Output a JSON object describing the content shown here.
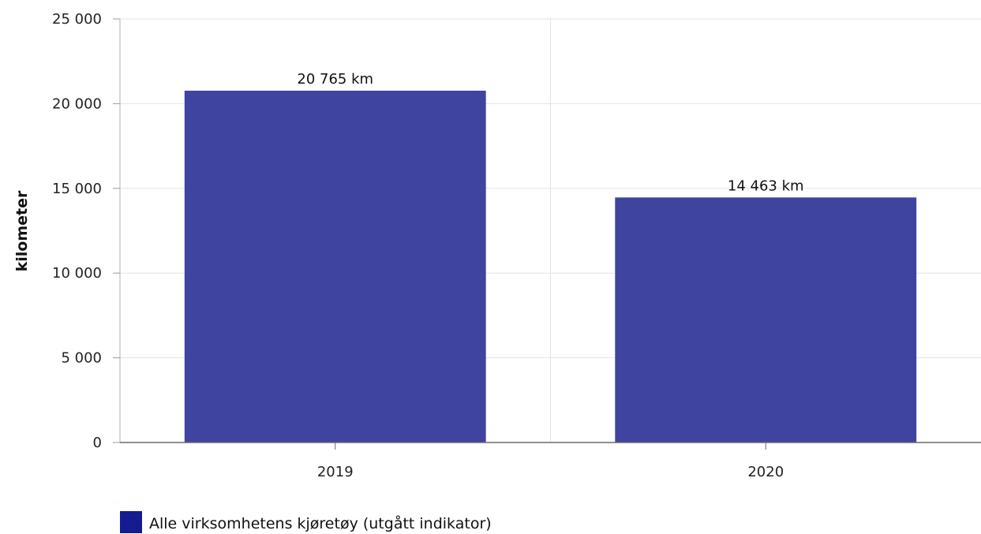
{
  "chart_data": {
    "type": "bar",
    "title": "",
    "xlabel": "",
    "ylabel": "kilometer",
    "categories": [
      "2019",
      "2020"
    ],
    "series": [
      {
        "name": "Alle virksomhetens kjøretøy (utgått indikator)",
        "values": [
          20765,
          14463
        ],
        "labels": [
          "20 765 km",
          "14 463 km"
        ],
        "color": "#3f44a0"
      }
    ],
    "ylim": [
      0,
      25000
    ],
    "yticks": [
      0,
      5000,
      10000,
      15000,
      20000,
      25000
    ],
    "ytick_labels": [
      "0",
      "5 000",
      "10 000",
      "15 000",
      "20 000",
      "25 000"
    ],
    "grid": true,
    "legend_position": "bottom-left",
    "legend_swatch_color": "#141c8f"
  }
}
